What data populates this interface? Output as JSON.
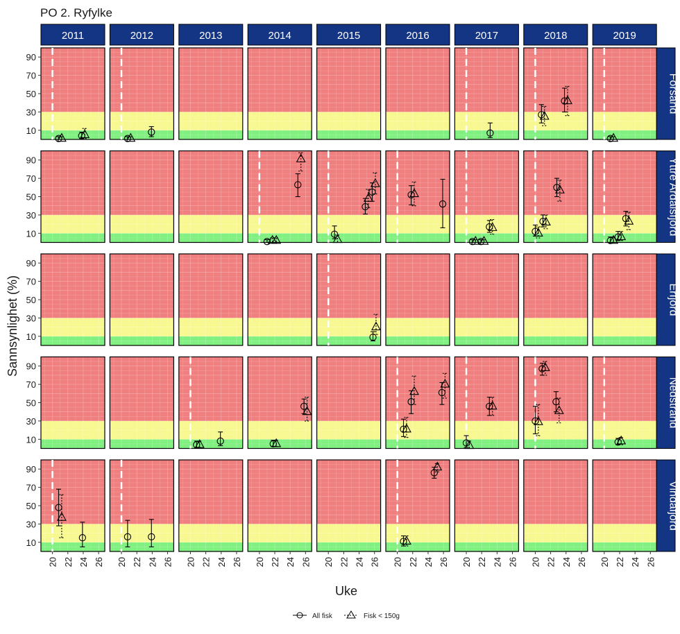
{
  "chart_data": {
    "type": "scatter",
    "title": "PO 2. Ryfylke",
    "xlabel": "Uke",
    "ylabel": "Sannsynlighet   (%)",
    "xlim": [
      18.5,
      26.8
    ],
    "ylim": [
      0,
      100
    ],
    "xticks": [
      20,
      22,
      24,
      26
    ],
    "yticks": [
      10,
      30,
      50,
      70,
      90
    ],
    "bands": [
      {
        "from": 0,
        "to": 10,
        "color": "#80f080"
      },
      {
        "from": 10,
        "to": 30,
        "color": "#f8f890"
      },
      {
        "from": 30,
        "to": 100,
        "color": "#f08080"
      }
    ],
    "years": [
      "2011",
      "2012",
      "2013",
      "2014",
      "2015",
      "2016",
      "2017",
      "2018",
      "2019"
    ],
    "locations": [
      "Forsand",
      "Yttre Ardalsfjord",
      "Erfjord",
      "Nedstrand",
      "Vindafjord"
    ],
    "legend": [
      {
        "label": "All fisk",
        "marker": "circle",
        "line": "solid"
      },
      {
        "label": "Fisk < 150g",
        "marker": "triangle",
        "line": "dotted"
      }
    ],
    "legend_position": "bottom",
    "grid": true,
    "colors": {
      "strip": "#143484",
      "strip_text": "#ffffff",
      "dashed_line": "#ffffff"
    },
    "vlines": [
      {
        "location": "Forsand",
        "year": "2011",
        "x": 20
      },
      {
        "location": "Forsand",
        "year": "2012",
        "x": 20
      },
      {
        "location": "Forsand",
        "year": "2017",
        "x": 20
      },
      {
        "location": "Forsand",
        "year": "2018",
        "x": 20
      },
      {
        "location": "Forsand",
        "year": "2019",
        "x": 20
      },
      {
        "location": "Yttre Ardalsfjord",
        "year": "2014",
        "x": 20
      },
      {
        "location": "Yttre Ardalsfjord",
        "year": "2015",
        "x": 20
      },
      {
        "location": "Yttre Ardalsfjord",
        "year": "2016",
        "x": 20
      },
      {
        "location": "Yttre Ardalsfjord",
        "year": "2017",
        "x": 20
      },
      {
        "location": "Yttre Ardalsfjord",
        "year": "2018",
        "x": 20
      },
      {
        "location": "Yttre Ardalsfjord",
        "year": "2019",
        "x": 20
      },
      {
        "location": "Erfjord",
        "year": "2015",
        "x": 20
      },
      {
        "location": "Nedstrand",
        "year": "2013",
        "x": 20
      },
      {
        "location": "Nedstrand",
        "year": "2016",
        "x": 20
      },
      {
        "location": "Nedstrand",
        "year": "2017",
        "x": 20
      },
      {
        "location": "Nedstrand",
        "year": "2018",
        "x": 20
      },
      {
        "location": "Nedstrand",
        "year": "2019",
        "x": 20
      },
      {
        "location": "Vindafjord",
        "year": "2011",
        "x": 20
      },
      {
        "location": "Vindafjord",
        "year": "2012",
        "x": 20
      },
      {
        "location": "Vindafjord",
        "year": "2016",
        "x": 20
      }
    ],
    "points": [
      {
        "location": "Forsand",
        "year": "2011",
        "series": "All fisk",
        "x": 20.8,
        "y": 1,
        "lo": 0,
        "hi": 3
      },
      {
        "location": "Forsand",
        "year": "2011",
        "series": "Fisk < 150g",
        "x": 21.2,
        "y": 1,
        "lo": 0,
        "hi": 3
      },
      {
        "location": "Forsand",
        "year": "2011",
        "series": "All fisk",
        "x": 23.8,
        "y": 4,
        "lo": 1,
        "hi": 8
      },
      {
        "location": "Forsand",
        "year": "2011",
        "series": "Fisk < 150g",
        "x": 24.2,
        "y": 5,
        "lo": 1,
        "hi": 12
      },
      {
        "location": "Forsand",
        "year": "2012",
        "series": "All fisk",
        "x": 20.8,
        "y": 1,
        "lo": 0,
        "hi": 3
      },
      {
        "location": "Forsand",
        "year": "2012",
        "series": "Fisk < 150g",
        "x": 21.2,
        "y": 1,
        "lo": 0,
        "hi": 3
      },
      {
        "location": "Forsand",
        "year": "2012",
        "series": "All fisk",
        "x": 23.9,
        "y": 8,
        "lo": 3,
        "hi": 14
      },
      {
        "location": "Forsand",
        "year": "2017",
        "series": "All fisk",
        "x": 23.1,
        "y": 7,
        "lo": 2,
        "hi": 18
      },
      {
        "location": "Forsand",
        "year": "2018",
        "series": "All fisk",
        "x": 20.8,
        "y": 27,
        "lo": 18,
        "hi": 38
      },
      {
        "location": "Forsand",
        "year": "2018",
        "series": "Fisk < 150g",
        "x": 21.2,
        "y": 25,
        "lo": 15,
        "hi": 36
      },
      {
        "location": "Forsand",
        "year": "2018",
        "series": "All fisk",
        "x": 23.8,
        "y": 42,
        "lo": 30,
        "hi": 56
      },
      {
        "location": "Forsand",
        "year": "2018",
        "series": "Fisk < 150g",
        "x": 24.2,
        "y": 42,
        "lo": 26,
        "hi": 58
      },
      {
        "location": "Forsand",
        "year": "2019",
        "series": "All fisk",
        "x": 20.8,
        "y": 1,
        "lo": 0,
        "hi": 3
      },
      {
        "location": "Forsand",
        "year": "2019",
        "series": "Fisk < 150g",
        "x": 21.2,
        "y": 1,
        "lo": 0,
        "hi": 3
      },
      {
        "location": "Yttre Ardalsfjord",
        "year": "2014",
        "series": "All fisk",
        "x": 21.0,
        "y": 1,
        "lo": 0,
        "hi": 3
      },
      {
        "location": "Yttre Ardalsfjord",
        "year": "2014",
        "series": "Fisk < 150g",
        "x": 21.7,
        "y": 2,
        "lo": 0,
        "hi": 5
      },
      {
        "location": "Yttre Ardalsfjord",
        "year": "2014",
        "series": "Fisk < 150g",
        "x": 22.2,
        "y": 2,
        "lo": 0,
        "hi": 5
      },
      {
        "location": "Yttre Ardalsfjord",
        "year": "2014",
        "series": "All fisk",
        "x": 25.0,
        "y": 63,
        "lo": 50,
        "hi": 75
      },
      {
        "location": "Yttre Ardalsfjord",
        "year": "2014",
        "series": "Fisk < 150g",
        "x": 25.4,
        "y": 91,
        "lo": 78,
        "hi": 98
      },
      {
        "location": "Yttre Ardalsfjord",
        "year": "2015",
        "series": "All fisk",
        "x": 20.8,
        "y": 9,
        "lo": 4,
        "hi": 18
      },
      {
        "location": "Yttre Ardalsfjord",
        "year": "2015",
        "series": "Fisk < 150g",
        "x": 21.2,
        "y": 3,
        "lo": 0,
        "hi": 8
      },
      {
        "location": "Yttre Ardalsfjord",
        "year": "2015",
        "series": "All fisk",
        "x": 24.8,
        "y": 39,
        "lo": 31,
        "hi": 48
      },
      {
        "location": "Yttre Ardalsfjord",
        "year": "2015",
        "series": "Fisk < 150g",
        "x": 25.2,
        "y": 48,
        "lo": 38,
        "hi": 58
      },
      {
        "location": "Yttre Ardalsfjord",
        "year": "2015",
        "series": "All fisk",
        "x": 25.7,
        "y": 55,
        "lo": 45,
        "hi": 65
      },
      {
        "location": "Yttre Ardalsfjord",
        "year": "2015",
        "series": "Fisk < 150g",
        "x": 26.1,
        "y": 64,
        "lo": 53,
        "hi": 76
      },
      {
        "location": "Yttre Ardalsfjord",
        "year": "2016",
        "series": "All fisk",
        "x": 21.8,
        "y": 52,
        "lo": 41,
        "hi": 62
      },
      {
        "location": "Yttre Ardalsfjord",
        "year": "2016",
        "series": "Fisk < 150g",
        "x": 22.2,
        "y": 53,
        "lo": 40,
        "hi": 66
      },
      {
        "location": "Yttre Ardalsfjord",
        "year": "2016",
        "series": "All fisk",
        "x": 25.9,
        "y": 42,
        "lo": 16,
        "hi": 69
      },
      {
        "location": "Yttre Ardalsfjord",
        "year": "2017",
        "series": "All fisk",
        "x": 20.8,
        "y": 1,
        "lo": 0,
        "hi": 3
      },
      {
        "location": "Yttre Ardalsfjord",
        "year": "2017",
        "series": "Fisk < 150g",
        "x": 21.2,
        "y": 1,
        "lo": 0,
        "hi": 3
      },
      {
        "location": "Yttre Ardalsfjord",
        "year": "2017",
        "series": "All fisk",
        "x": 21.9,
        "y": 1,
        "lo": 0,
        "hi": 3
      },
      {
        "location": "Yttre Ardalsfjord",
        "year": "2017",
        "series": "Fisk < 150g",
        "x": 22.3,
        "y": 1,
        "lo": 0,
        "hi": 3
      },
      {
        "location": "Yttre Ardalsfjord",
        "year": "2017",
        "series": "All fisk",
        "x": 23.0,
        "y": 17,
        "lo": 11,
        "hi": 24
      },
      {
        "location": "Yttre Ardalsfjord",
        "year": "2017",
        "series": "Fisk < 150g",
        "x": 23.4,
        "y": 16,
        "lo": 9,
        "hi": 25
      },
      {
        "location": "Yttre Ardalsfjord",
        "year": "2018",
        "series": "All fisk",
        "x": 20.0,
        "y": 12,
        "lo": 7,
        "hi": 19
      },
      {
        "location": "Yttre Ardalsfjord",
        "year": "2018",
        "series": "Fisk < 150g",
        "x": 20.4,
        "y": 10,
        "lo": 5,
        "hi": 17
      },
      {
        "location": "Yttre Ardalsfjord",
        "year": "2018",
        "series": "All fisk",
        "x": 21.0,
        "y": 23,
        "lo": 17,
        "hi": 30
      },
      {
        "location": "Yttre Ardalsfjord",
        "year": "2018",
        "series": "Fisk < 150g",
        "x": 21.4,
        "y": 22,
        "lo": 15,
        "hi": 30
      },
      {
        "location": "Yttre Ardalsfjord",
        "year": "2018",
        "series": "All fisk",
        "x": 22.8,
        "y": 60,
        "lo": 50,
        "hi": 70
      },
      {
        "location": "Yttre Ardalsfjord",
        "year": "2018",
        "series": "Fisk < 150g",
        "x": 23.2,
        "y": 57,
        "lo": 45,
        "hi": 68
      },
      {
        "location": "Yttre Ardalsfjord",
        "year": "2019",
        "series": "All fisk",
        "x": 20.8,
        "y": 2,
        "lo": 0,
        "hi": 6
      },
      {
        "location": "Yttre Ardalsfjord",
        "year": "2019",
        "series": "Fisk < 150g",
        "x": 21.2,
        "y": 2,
        "lo": 0,
        "hi": 6
      },
      {
        "location": "Yttre Ardalsfjord",
        "year": "2019",
        "series": "All fisk",
        "x": 21.8,
        "y": 6,
        "lo": 2,
        "hi": 12
      },
      {
        "location": "Yttre Ardalsfjord",
        "year": "2019",
        "series": "Fisk < 150g",
        "x": 22.2,
        "y": 6,
        "lo": 2,
        "hi": 12
      },
      {
        "location": "Yttre Ardalsfjord",
        "year": "2019",
        "series": "All fisk",
        "x": 22.8,
        "y": 26,
        "lo": 18,
        "hi": 34
      },
      {
        "location": "Yttre Ardalsfjord",
        "year": "2019",
        "series": "Fisk < 150g",
        "x": 23.2,
        "y": 23,
        "lo": 14,
        "hi": 33
      },
      {
        "location": "Erfjord",
        "year": "2015",
        "series": "All fisk",
        "x": 25.8,
        "y": 9,
        "lo": 5,
        "hi": 15
      },
      {
        "location": "Erfjord",
        "year": "2015",
        "series": "Fisk < 150g",
        "x": 26.2,
        "y": 20,
        "lo": 12,
        "hi": 34
      },
      {
        "location": "Nedstrand",
        "year": "2013",
        "series": "All fisk",
        "x": 20.8,
        "y": 4,
        "lo": 1,
        "hi": 8
      },
      {
        "location": "Nedstrand",
        "year": "2013",
        "series": "Fisk < 150g",
        "x": 21.2,
        "y": 4,
        "lo": 1,
        "hi": 8
      },
      {
        "location": "Nedstrand",
        "year": "2013",
        "series": "All fisk",
        "x": 23.9,
        "y": 8,
        "lo": 3,
        "hi": 18
      },
      {
        "location": "Nedstrand",
        "year": "2014",
        "series": "All fisk",
        "x": 21.8,
        "y": 5,
        "lo": 2,
        "hi": 9
      },
      {
        "location": "Nedstrand",
        "year": "2014",
        "series": "Fisk < 150g",
        "x": 22.2,
        "y": 5,
        "lo": 2,
        "hi": 9
      },
      {
        "location": "Nedstrand",
        "year": "2014",
        "series": "All fisk",
        "x": 25.8,
        "y": 46,
        "lo": 38,
        "hi": 54
      },
      {
        "location": "Nedstrand",
        "year": "2014",
        "series": "Fisk < 150g",
        "x": 26.2,
        "y": 40,
        "lo": 30,
        "hi": 56
      },
      {
        "location": "Nedstrand",
        "year": "2016",
        "series": "All fisk",
        "x": 20.8,
        "y": 21,
        "lo": 13,
        "hi": 32
      },
      {
        "location": "Nedstrand",
        "year": "2016",
        "series": "Fisk < 150g",
        "x": 21.2,
        "y": 21,
        "lo": 12,
        "hi": 34
      },
      {
        "location": "Nedstrand",
        "year": "2016",
        "series": "All fisk",
        "x": 21.8,
        "y": 51,
        "lo": 38,
        "hi": 63
      },
      {
        "location": "Nedstrand",
        "year": "2016",
        "series": "Fisk < 150g",
        "x": 22.2,
        "y": 62,
        "lo": 48,
        "hi": 79
      },
      {
        "location": "Nedstrand",
        "year": "2016",
        "series": "All fisk",
        "x": 25.8,
        "y": 61,
        "lo": 48,
        "hi": 72
      },
      {
        "location": "Nedstrand",
        "year": "2016",
        "series": "Fisk < 150g",
        "x": 26.2,
        "y": 70,
        "lo": 55,
        "hi": 82
      },
      {
        "location": "Nedstrand",
        "year": "2017",
        "series": "All fisk",
        "x": 20.0,
        "y": 6,
        "lo": 1,
        "hi": 14
      },
      {
        "location": "Nedstrand",
        "year": "2017",
        "series": "Fisk < 150g",
        "x": 20.4,
        "y": 3,
        "lo": 0,
        "hi": 8
      },
      {
        "location": "Nedstrand",
        "year": "2017",
        "series": "All fisk",
        "x": 23.0,
        "y": 46,
        "lo": 36,
        "hi": 56
      },
      {
        "location": "Nedstrand",
        "year": "2017",
        "series": "Fisk < 150g",
        "x": 23.4,
        "y": 46,
        "lo": 36,
        "hi": 56
      },
      {
        "location": "Nedstrand",
        "year": "2018",
        "series": "All fisk",
        "x": 20.0,
        "y": 30,
        "lo": 16,
        "hi": 46
      },
      {
        "location": "Nedstrand",
        "year": "2018",
        "series": "Fisk < 150g",
        "x": 20.4,
        "y": 29,
        "lo": 14,
        "hi": 48
      },
      {
        "location": "Nedstrand",
        "year": "2018",
        "series": "All fisk",
        "x": 20.9,
        "y": 87,
        "lo": 80,
        "hi": 93
      },
      {
        "location": "Nedstrand",
        "year": "2018",
        "series": "Fisk < 150g",
        "x": 21.3,
        "y": 88,
        "lo": 80,
        "hi": 95
      },
      {
        "location": "Nedstrand",
        "year": "2018",
        "series": "All fisk",
        "x": 22.7,
        "y": 51,
        "lo": 40,
        "hi": 62
      },
      {
        "location": "Nedstrand",
        "year": "2018",
        "series": "Fisk < 150g",
        "x": 23.1,
        "y": 41,
        "lo": 28,
        "hi": 55
      },
      {
        "location": "Nedstrand",
        "year": "2019",
        "series": "All fisk",
        "x": 21.8,
        "y": 7,
        "lo": 4,
        "hi": 11
      },
      {
        "location": "Nedstrand",
        "year": "2019",
        "series": "Fisk < 150g",
        "x": 22.2,
        "y": 8,
        "lo": 4,
        "hi": 12
      },
      {
        "location": "Vindafjord",
        "year": "2011",
        "series": "All fisk",
        "x": 20.8,
        "y": 48,
        "lo": 28,
        "hi": 68
      },
      {
        "location": "Vindafjord",
        "year": "2011",
        "series": "Fisk < 150g",
        "x": 21.2,
        "y": 37,
        "lo": 15,
        "hi": 62
      },
      {
        "location": "Vindafjord",
        "year": "2011",
        "series": "All fisk",
        "x": 23.9,
        "y": 15,
        "lo": 5,
        "hi": 32
      },
      {
        "location": "Vindafjord",
        "year": "2012",
        "series": "All fisk",
        "x": 20.8,
        "y": 16,
        "lo": 5,
        "hi": 34
      },
      {
        "location": "Vindafjord",
        "year": "2012",
        "series": "All fisk",
        "x": 23.9,
        "y": 16,
        "lo": 5,
        "hi": 35
      },
      {
        "location": "Vindafjord",
        "year": "2016",
        "series": "All fisk",
        "x": 20.8,
        "y": 11,
        "lo": 6,
        "hi": 17
      },
      {
        "location": "Vindafjord",
        "year": "2016",
        "series": "Fisk < 150g",
        "x": 21.2,
        "y": 11,
        "lo": 6,
        "hi": 17
      },
      {
        "location": "Vindafjord",
        "year": "2016",
        "series": "All fisk",
        "x": 24.8,
        "y": 86,
        "lo": 80,
        "hi": 92
      },
      {
        "location": "Vindafjord",
        "year": "2016",
        "series": "Fisk < 150g",
        "x": 25.2,
        "y": 92,
        "lo": 87,
        "hi": 96
      }
    ]
  }
}
